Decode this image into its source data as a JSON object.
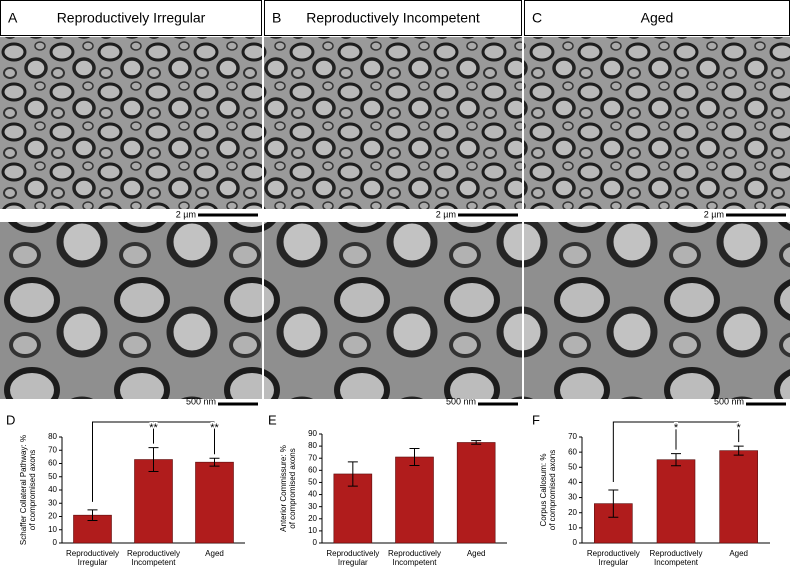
{
  "micrograph_panels": [
    {
      "letter": "A",
      "title": "Reproductively Irregular",
      "scale_top": "2 µm",
      "scale_bottom": "500 nm"
    },
    {
      "letter": "B",
      "title": "Reproductively Incompetent",
      "scale_top": "2 µm",
      "scale_bottom": "500 nm"
    },
    {
      "letter": "C",
      "title": "Aged",
      "scale_top": "2 µm",
      "scale_bottom": "500 nm"
    }
  ],
  "chart_data": [
    {
      "type": "bar",
      "letter": "D",
      "ylabel": [
        "Schaffer Collateral Pathway: %",
        "of compromised axons"
      ],
      "categories": [
        "Reproductively Irregular",
        "Reproductively Incompetent",
        "Aged"
      ],
      "values": [
        21,
        63,
        61
      ],
      "errors": [
        4,
        9,
        3
      ],
      "color": "#b01c1c",
      "significance_labels": [
        null,
        "**",
        "**"
      ],
      "ylim": [
        0,
        80
      ],
      "yticks": [
        0,
        10,
        20,
        30,
        40,
        50,
        60,
        70,
        80
      ]
    },
    {
      "type": "bar",
      "letter": "E",
      "ylabel": [
        "Anterior Commissure: %",
        "of compromised axons"
      ],
      "categories": [
        "Reproductively Irregular",
        "Reproductively Incompetent",
        "Aged"
      ],
      "values": [
        57,
        71,
        83
      ],
      "errors": [
        10,
        7,
        1.5
      ],
      "color": "#b01c1c",
      "ylim": [
        0,
        90
      ],
      "yticks": [
        0,
        10,
        20,
        30,
        40,
        50,
        60,
        70,
        80,
        90
      ]
    },
    {
      "type": "bar",
      "letter": "F",
      "ylabel": [
        "Corpus Callosum: %",
        "of compromised axons"
      ],
      "categories": [
        "Reproductively Irregular",
        "Reproductively Incompetent",
        "Aged"
      ],
      "values": [
        26,
        55,
        61
      ],
      "errors": [
        9,
        4,
        3
      ],
      "color": "#b01c1c",
      "significance_labels": [
        null,
        "*",
        "*"
      ],
      "ylim": [
        0,
        70
      ],
      "yticks": [
        0,
        10,
        20,
        30,
        40,
        50,
        60,
        70
      ]
    }
  ]
}
